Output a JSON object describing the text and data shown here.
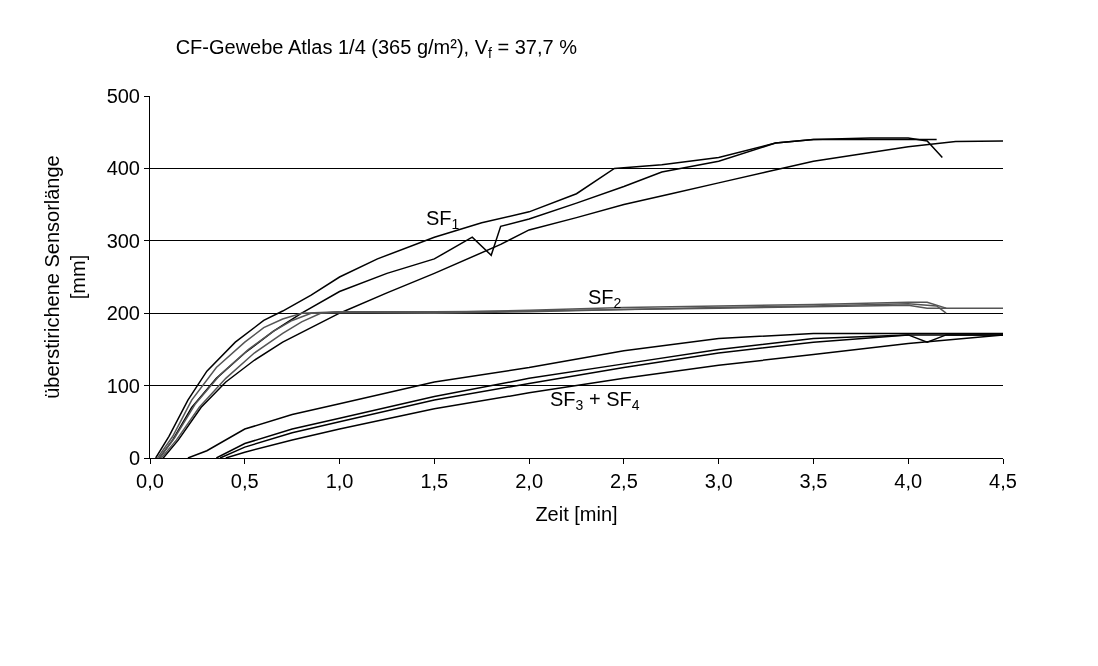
{
  "chart_data": {
    "type": "line",
    "title": "CF-Gewebe Atlas 1/4 (365 g/m²), V$_{f}$ = 37,7 %",
    "xlabel": "Zeit [min]",
    "ylabel": "überstirichene Sensorlänge\n[mm]",
    "series": [
      {
        "color": "#000000",
        "x": [
          0.03,
          0.1,
          0.2,
          0.3,
          0.45,
          0.6,
          0.7,
          0.85,
          1.0,
          1.2,
          1.5,
          1.75,
          2.0,
          2.25,
          2.45,
          2.7,
          3.0,
          3.3,
          3.5,
          3.8,
          4.0,
          4.1,
          4.18
        ],
        "values": [
          0,
          30,
          80,
          120,
          160,
          190,
          203,
          225,
          250,
          275,
          305,
          325,
          340,
          365,
          400,
          405,
          415,
          435,
          440,
          442,
          442,
          438,
          415
        ]
      },
      {
        "color": "#000000",
        "x": [
          0.05,
          0.12,
          0.22,
          0.35,
          0.5,
          0.65,
          0.8,
          1.0,
          1.25,
          1.5,
          1.7,
          1.8,
          1.85,
          2.0,
          2.25,
          2.5,
          2.7,
          3.0,
          3.3,
          3.5,
          3.8,
          4.0,
          4.15
        ],
        "values": [
          0,
          25,
          70,
          110,
          145,
          175,
          200,
          230,
          255,
          275,
          305,
          280,
          320,
          330,
          352,
          375,
          395,
          410,
          435,
          440,
          440,
          440,
          440
        ]
      },
      {
        "color": "#000000",
        "x": [
          0.07,
          0.15,
          0.27,
          0.4,
          0.55,
          0.7,
          0.85,
          1.0,
          1.25,
          1.5,
          1.85,
          2.0,
          2.25,
          2.5,
          2.75,
          3.0,
          3.25,
          3.5,
          3.75,
          4.0,
          4.25,
          4.5
        ],
        "values": [
          0,
          25,
          70,
          105,
          135,
          160,
          180,
          200,
          228,
          255,
          295,
          315,
          332,
          350,
          365,
          380,
          395,
          410,
          420,
          430,
          437,
          438
        ]
      },
      {
        "color": "#555555",
        "x": [
          0.04,
          0.12,
          0.22,
          0.35,
          0.5,
          0.6,
          0.7,
          0.8,
          1.0,
          1.5,
          2.0,
          2.5,
          3.0,
          3.5,
          4.0,
          4.1,
          4.5
        ],
        "values": [
          0,
          30,
          80,
          125,
          160,
          180,
          192,
          200,
          202,
          202,
          203,
          205,
          207,
          209,
          211,
          207,
          207
        ]
      },
      {
        "color": "#555555",
        "x": [
          0.05,
          0.13,
          0.24,
          0.37,
          0.52,
          0.65,
          0.75,
          0.85,
          1.0,
          1.5,
          2.0,
          2.5,
          3.0,
          3.5,
          4.0,
          4.15,
          4.2
        ],
        "values": [
          0,
          28,
          75,
          115,
          150,
          175,
          190,
          200,
          201,
          200,
          202,
          205,
          208,
          210,
          213,
          210,
          200
        ]
      },
      {
        "color": "#555555",
        "x": [
          0.06,
          0.14,
          0.26,
          0.4,
          0.55,
          0.7,
          0.8,
          0.9,
          1.0,
          1.5,
          2.0,
          2.5,
          3.0,
          3.5,
          4.0,
          4.1,
          4.2
        ],
        "values": [
          0,
          25,
          70,
          110,
          145,
          172,
          188,
          200,
          202,
          201,
          204,
          208,
          210,
          212,
          215,
          215,
          207
        ]
      },
      {
        "color": "#000000",
        "x": [
          0.2,
          0.3,
          0.5,
          0.75,
          1.0,
          1.5,
          2.0,
          2.5,
          3.0,
          3.5,
          4.0,
          4.5
        ],
        "values": [
          0,
          10,
          40,
          60,
          75,
          105,
          125,
          148,
          165,
          172,
          172,
          172
        ]
      },
      {
        "color": "#000000",
        "x": [
          0.35,
          0.5,
          0.75,
          1.0,
          1.5,
          2.0,
          2.5,
          3.0,
          3.5,
          4.0,
          4.1,
          4.2,
          4.5
        ],
        "values": [
          0,
          20,
          40,
          55,
          85,
          110,
          130,
          150,
          165,
          170,
          160,
          170,
          170
        ]
      },
      {
        "color": "#000000",
        "x": [
          0.37,
          0.5,
          0.75,
          1.0,
          1.5,
          2.0,
          2.5,
          3.0,
          3.5,
          4.0,
          4.5
        ],
        "values": [
          0,
          15,
          35,
          50,
          80,
          103,
          125,
          145,
          160,
          170,
          170
        ]
      },
      {
        "color": "#000000",
        "x": [
          0.4,
          0.5,
          0.75,
          1.0,
          1.5,
          2.0,
          2.5,
          3.0,
          3.5,
          4.0,
          4.5
        ],
        "values": [
          0,
          8,
          25,
          40,
          68,
          90,
          110,
          128,
          143,
          158,
          170
        ]
      }
    ],
    "xlim": [
      0,
      4.5
    ],
    "xticks": [
      {
        "value": 0,
        "label": "0,0"
      },
      {
        "value": 0.5,
        "label": "0,5"
      },
      {
        "value": 1,
        "label": "1,0"
      },
      {
        "value": 1.5,
        "label": "1,5"
      },
      {
        "value": 2,
        "label": "2,0"
      },
      {
        "value": 2.5,
        "label": "2,5"
      },
      {
        "value": 3,
        "label": "3,0"
      },
      {
        "value": 3.5,
        "label": "3,5"
      },
      {
        "value": 4,
        "label": "4,0"
      },
      {
        "value": 4.5,
        "label": "4,5"
      }
    ],
    "ylim": [
      0,
      500
    ],
    "yticks": [
      0,
      100,
      200,
      300,
      400,
      500
    ],
    "grid": "y",
    "marker": "none",
    "line_style": "solid",
    "annotations": [
      "SF$_{1}$",
      "SF$_{2}$",
      "SF$_{3}$ + SF$_{4}$"
    ]
  }
}
